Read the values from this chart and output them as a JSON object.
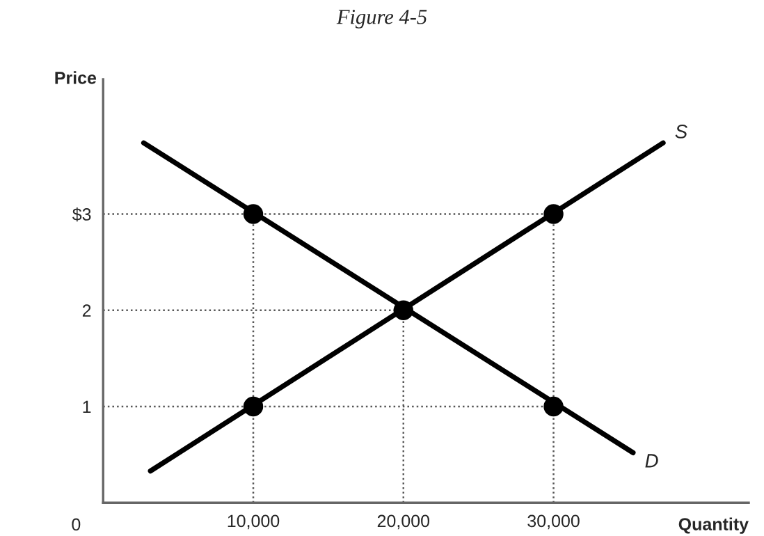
{
  "chart_data": {
    "type": "line",
    "title": "Figure 4-5",
    "xlabel": "Quantity",
    "ylabel": "Price",
    "xlim": [
      0,
      43000
    ],
    "ylim": [
      0,
      4.4
    ],
    "xticks": [
      {
        "value": 10000,
        "label": "10,000"
      },
      {
        "value": 20000,
        "label": "20,000"
      },
      {
        "value": 30000,
        "label": "30,000"
      }
    ],
    "yticks": [
      {
        "value": 1,
        "label": "1"
      },
      {
        "value": 2,
        "label": "2"
      },
      {
        "value": 3,
        "label": "$3"
      }
    ],
    "series": [
      {
        "name": "S",
        "color": "#000000",
        "x": [
          3150,
          37300
        ],
        "values": [
          0.33,
          3.74
        ]
      },
      {
        "name": "D",
        "color": "#000000",
        "x": [
          2700,
          35300
        ],
        "values": [
          3.74,
          0.52
        ]
      },
      {
        "type": "scatter",
        "color": "#000000",
        "marker": "circle",
        "x": [
          10000,
          20000,
          30000,
          10000,
          30000
        ],
        "values": [
          3,
          2,
          1,
          1,
          3
        ]
      }
    ],
    "ref_lines": [
      {
        "axis": "y",
        "value": 3,
        "color": "#555555",
        "line_style": "dotted"
      },
      {
        "axis": "y",
        "value": 2,
        "color": "#555555",
        "line_style": "dotted"
      },
      {
        "axis": "y",
        "value": 1,
        "color": "#555555",
        "line_style": "dotted"
      },
      {
        "axis": "x",
        "value": 10000,
        "color": "#555555",
        "line_style": "dotted"
      },
      {
        "axis": "x",
        "value": 20000,
        "color": "#555555",
        "line_style": "dotted"
      },
      {
        "axis": "x",
        "value": 30000,
        "color": "#555555",
        "line_style": "dotted"
      }
    ],
    "annotations": [
      "0"
    ],
    "grid": false,
    "legend": false
  }
}
